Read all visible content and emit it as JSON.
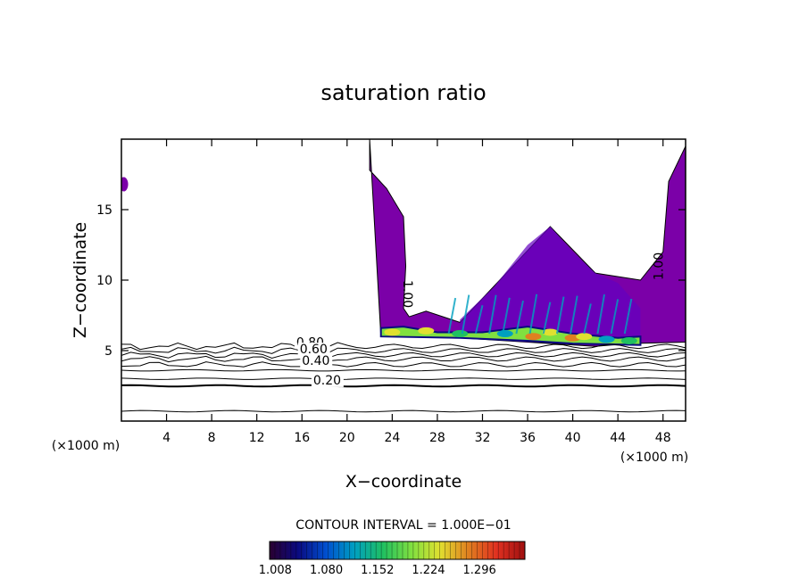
{
  "chart_data": {
    "type": "contour",
    "title": "saturation ratio",
    "xlabel": "X−coordinate",
    "ylabel": "Z−coordinate",
    "x_unit_label": "(×1000 m)",
    "y_unit_label": "(×1000 m)",
    "xlim": [
      0,
      50
    ],
    "ylim": [
      0,
      20
    ],
    "x_ticks": [
      4,
      8,
      12,
      16,
      20,
      24,
      28,
      32,
      36,
      40,
      44,
      48
    ],
    "y_ticks": [
      5,
      10,
      15
    ],
    "x_tick_labels": [
      "4",
      "8",
      "12",
      "16",
      "20",
      "24",
      "28",
      "32",
      "36",
      "40",
      "44",
      "48"
    ],
    "y_tick_labels": [
      "5",
      "10",
      "15"
    ],
    "contour_interval_text": "CONTOUR INTERVAL = 1.000E−01",
    "contour_line_labels": [
      {
        "text": "0.80",
        "x": 15.5,
        "y": 5.3
      },
      {
        "text": "0.60",
        "x": 15.8,
        "y": 4.8
      },
      {
        "text": "0.40",
        "x": 16.0,
        "y": 4.0
      },
      {
        "text": "0.20",
        "x": 17.0,
        "y": 2.6
      },
      {
        "text": "1.00",
        "x": 25.0,
        "y": 10.0
      },
      {
        "text": "1.00",
        "x": 48.0,
        "y": 10.0
      }
    ],
    "contour_levels_lower": [
      0.1,
      0.2,
      0.3,
      0.4,
      0.5,
      0.6,
      0.7,
      0.8,
      0.9
    ],
    "line_contours": [
      {
        "level": 0.1,
        "y": 0.7
      },
      {
        "level": 0.2,
        "y": 2.5
      },
      {
        "level": 0.3,
        "y": 3.0
      },
      {
        "level": 0.4,
        "y": 3.6
      },
      {
        "level": 0.5,
        "y": 4.0
      },
      {
        "level": 0.6,
        "y": 4.4
      },
      {
        "level": 0.7,
        "y": 4.7
      },
      {
        "level": 0.8,
        "y": 5.0
      },
      {
        "level": 0.9,
        "y": 5.3
      }
    ],
    "supersaturated_region": {
      "base_level": 1.0,
      "upper_outline": [
        [
          22,
          20
        ],
        [
          22,
          17.8
        ],
        [
          23.5,
          16.5
        ],
        [
          25,
          14.5
        ],
        [
          25.2,
          11
        ],
        [
          25,
          8
        ],
        [
          25.5,
          7.4
        ],
        [
          27,
          7.8
        ],
        [
          30,
          7
        ],
        [
          38,
          13.8
        ],
        [
          42,
          10.5
        ],
        [
          46,
          10
        ],
        [
          48,
          12
        ],
        [
          48.5,
          17
        ],
        [
          50,
          19.5
        ],
        [
          50,
          20
        ]
      ],
      "lower_outline": [
        [
          50,
          5.6
        ],
        [
          45,
          5.5
        ],
        [
          42,
          5.3
        ],
        [
          36,
          5.6
        ],
        [
          30,
          5.9
        ],
        [
          23,
          6.0
        ]
      ]
    },
    "colorbar": {
      "ticks": [
        1.008,
        1.08,
        1.152,
        1.224,
        1.296
      ],
      "tick_labels": [
        "1.008",
        "1.080",
        "1.152",
        "1.224",
        "1.296"
      ],
      "colors": [
        "#2a0030",
        "#0a0a80",
        "#0050d0",
        "#00a0c0",
        "#20c060",
        "#80e040",
        "#e0e030",
        "#e08020",
        "#e03020",
        "#a01010"
      ]
    },
    "fill_color": "#7b00a8",
    "fill_color_dense": "#6400c0",
    "grid": false
  }
}
